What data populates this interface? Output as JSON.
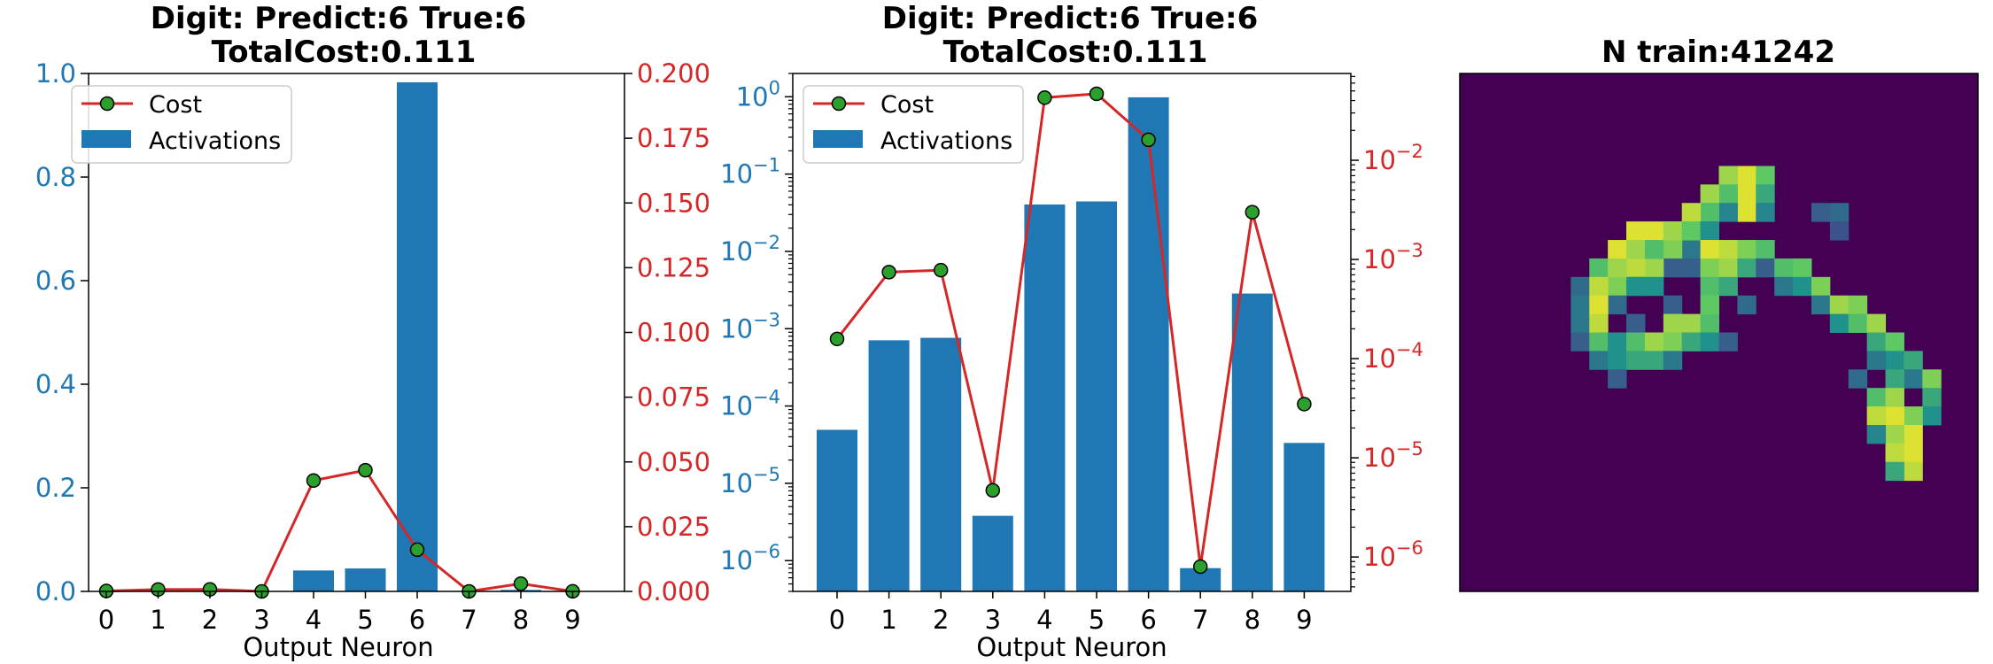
{
  "colors": {
    "bars": "#1f77b4",
    "line": "#d62728",
    "marker": "#2ca02c",
    "axis": "#000000"
  },
  "chart_data": [
    {
      "type": "bar",
      "title_line1": "Digit: Predict:6 True:6",
      "title_line2": "TotalCost:0.111",
      "xlabel": "Output Neuron",
      "categories": [
        "0",
        "1",
        "2",
        "3",
        "4",
        "5",
        "6",
        "7",
        "8",
        "9"
      ],
      "series": [
        {
          "name": "Cost",
          "axis": "right",
          "type": "line",
          "values": [
            0.000158,
            0.000745,
            0.00078,
            4.7e-06,
            0.0428,
            0.0468,
            0.0161,
            8e-07,
            0.003,
            3.48e-05
          ]
        },
        {
          "name": "Activations",
          "axis": "left",
          "type": "bar",
          "values": [
            4.92e-05,
            0.000708,
            0.000762,
            3.8e-06,
            0.0404,
            0.0443,
            0.983,
            8e-07,
            0.00285,
            3.33e-05
          ]
        }
      ],
      "y_left": {
        "scale": "linear",
        "lim": [
          0,
          1.0
        ],
        "ticks": [
          "0.0",
          "0.2",
          "0.4",
          "0.6",
          "0.8",
          "1.0"
        ]
      },
      "y_right": {
        "scale": "linear",
        "lim": [
          0,
          0.2
        ],
        "ticks": [
          "0.000",
          "0.025",
          "0.050",
          "0.075",
          "0.100",
          "0.125",
          "0.150",
          "0.175",
          "0.200"
        ]
      },
      "legend": {
        "placement": "upper-left",
        "entries": [
          "Cost",
          "Activations"
        ]
      }
    },
    {
      "type": "bar",
      "title_line1": "Digit: Predict:6 True:6",
      "title_line2": "TotalCost:0.111",
      "xlabel": "Output Neuron",
      "categories": [
        "0",
        "1",
        "2",
        "3",
        "4",
        "5",
        "6",
        "7",
        "8",
        "9"
      ],
      "series": [
        {
          "name": "Cost",
          "axis": "right",
          "type": "line",
          "values": [
            0.000158,
            0.000745,
            0.00078,
            4.7e-06,
            0.0428,
            0.0468,
            0.0161,
            8e-07,
            0.003,
            3.48e-05
          ]
        },
        {
          "name": "Activations",
          "axis": "left",
          "type": "bar",
          "values": [
            4.92e-05,
            0.000708,
            0.000762,
            3.8e-06,
            0.0404,
            0.0443,
            0.983,
            8e-07,
            0.00285,
            3.33e-05
          ]
        }
      ],
      "y_left": {
        "scale": "log",
        "lim": [
          4e-07,
          2.0
        ],
        "ticks": [
          {
            "value": 1e-06,
            "exp": "−6"
          },
          {
            "value": 1e-05,
            "exp": "−5"
          },
          {
            "value": 0.0001,
            "exp": "−4"
          },
          {
            "value": 0.001,
            "exp": "−3"
          },
          {
            "value": 0.01,
            "exp": "−2"
          },
          {
            "value": 0.1,
            "exp": "−1"
          },
          {
            "value": 1,
            "exp": "0"
          }
        ]
      },
      "y_right": {
        "scale": "log",
        "lim": [
          4.5e-07,
          0.075
        ],
        "ticks": [
          {
            "value": 1e-06,
            "exp": "−6"
          },
          {
            "value": 1e-05,
            "exp": "−5"
          },
          {
            "value": 0.0001,
            "exp": "−4"
          },
          {
            "value": 0.001,
            "exp": "−3"
          },
          {
            "value": 0.01,
            "exp": "−2"
          }
        ]
      },
      "legend": {
        "placement": "upper-left",
        "entries": [
          "Cost",
          "Activations"
        ]
      }
    },
    {
      "type": "heatmap",
      "title": "N train:41242",
      "colormap": "viridis",
      "grid_size": 28,
      "pixels": [
        [
          5,
          15,
          0.95
        ],
        [
          6,
          15,
          0.95
        ],
        [
          7,
          15,
          0.95
        ],
        [
          5,
          16,
          0.75
        ],
        [
          6,
          16,
          0.6
        ],
        [
          7,
          16,
          0.45
        ],
        [
          5,
          14,
          0.85
        ],
        [
          6,
          14,
          0.7
        ],
        [
          7,
          14,
          0.45
        ],
        [
          6,
          13,
          0.85
        ],
        [
          7,
          13,
          0.7
        ],
        [
          8,
          13,
          0.4
        ],
        [
          7,
          12,
          0.9
        ],
        [
          8,
          12,
          0.75
        ],
        [
          9,
          12,
          0.4
        ],
        [
          8,
          11,
          0.9
        ],
        [
          9,
          11,
          0.8
        ],
        [
          10,
          11,
          0.3
        ],
        [
          9,
          10,
          0.95
        ],
        [
          10,
          10,
          0.85
        ],
        [
          10,
          9,
          0.9
        ],
        [
          11,
          9,
          0.5
        ],
        [
          11,
          8,
          0.8
        ],
        [
          12,
          8,
          0.35
        ],
        [
          12,
          11,
          0.3
        ],
        [
          11,
          10,
          0.5
        ],
        [
          10,
          12,
          0.3
        ],
        [
          11,
          9,
          0.5
        ],
        [
          13,
          9,
          0.3
        ],
        [
          11,
          6,
          0.35
        ],
        [
          12,
          6,
          0.4
        ],
        [
          13,
          6,
          0.4
        ],
        [
          14,
          6,
          0.3
        ],
        [
          10,
          7,
          0.7
        ],
        [
          11,
          7,
          0.9
        ],
        [
          12,
          7,
          0.95
        ],
        [
          13,
          7,
          0.9
        ],
        [
          14,
          7,
          0.7
        ],
        [
          15,
          7,
          0.4
        ],
        [
          9,
          8,
          0.95
        ],
        [
          10,
          8,
          0.85
        ],
        [
          14,
          8,
          0.5
        ],
        [
          15,
          8,
          0.5
        ],
        [
          16,
          8,
          0.3
        ],
        [
          8,
          9,
          0.95
        ],
        [
          9,
          9,
          0.85
        ],
        [
          14,
          9,
          0.7
        ],
        [
          15,
          9,
          0.6
        ],
        [
          8,
          10,
          0.95
        ],
        [
          9,
          10,
          0.7
        ],
        [
          14,
          10,
          0.85
        ],
        [
          15,
          10,
          0.6
        ],
        [
          8,
          11,
          0.85
        ],
        [
          13,
          11,
          0.85
        ],
        [
          14,
          11,
          0.8
        ],
        [
          15,
          11,
          0.4
        ],
        [
          8,
          12,
          0.75
        ],
        [
          13,
          12,
          0.85
        ],
        [
          14,
          12,
          0.6
        ],
        [
          8,
          13,
          0.5
        ],
        [
          13,
          13,
          0.7
        ],
        [
          14,
          13,
          0.5
        ],
        [
          9,
          13,
          0.95
        ],
        [
          10,
          13,
          0.8
        ],
        [
          11,
          13,
          0.7
        ],
        [
          12,
          13,
          0.75
        ],
        [
          9,
          14,
          0.9
        ],
        [
          10,
          14,
          0.85
        ],
        [
          11,
          14,
          0.6
        ],
        [
          9,
          15,
          0.8
        ],
        [
          10,
          15,
          0.6
        ],
        [
          9,
          16,
          0.7
        ],
        [
          10,
          16,
          0.3
        ],
        [
          10,
          17,
          0.7
        ],
        [
          11,
          17,
          0.4
        ],
        [
          10,
          18,
          0.75
        ],
        [
          11,
          18,
          0.5
        ],
        [
          11,
          19,
          0.8
        ],
        [
          12,
          19,
          0.4
        ],
        [
          12,
          20,
          0.85
        ],
        [
          13,
          20,
          0.5
        ],
        [
          12,
          21,
          0.8
        ],
        [
          13,
          21,
          0.7
        ],
        [
          13,
          22,
          0.85
        ],
        [
          14,
          22,
          0.6
        ],
        [
          14,
          23,
          0.75
        ],
        [
          15,
          23,
          0.5
        ],
        [
          15,
          24,
          0.6
        ],
        [
          16,
          24,
          0.4
        ],
        [
          16,
          25,
          0.8
        ],
        [
          17,
          25,
          0.6
        ],
        [
          18,
          25,
          0.5
        ],
        [
          18,
          24,
          0.8
        ],
        [
          19,
          24,
          0.95
        ],
        [
          20,
          24,
          0.95
        ],
        [
          21,
          24,
          0.9
        ],
        [
          18,
          23,
          0.95
        ],
        [
          19,
          23,
          0.85
        ],
        [
          20,
          23,
          0.9
        ],
        [
          21,
          23,
          0.6
        ],
        [
          17,
          22,
          0.7
        ],
        [
          18,
          22,
          0.9
        ],
        [
          19,
          22,
          0.45
        ],
        [
          16,
          23,
          0.6
        ],
        [
          17,
          23,
          0.85
        ],
        [
          7,
          20,
          0.35
        ],
        [
          8,
          20,
          0.25
        ],
        [
          7,
          19,
          0.3
        ],
        [
          12,
          15,
          0.35
        ],
        [
          14,
          14,
          0.3
        ],
        [
          16,
          21,
          0.35
        ],
        [
          15,
          22,
          0.4
        ]
      ]
    }
  ]
}
